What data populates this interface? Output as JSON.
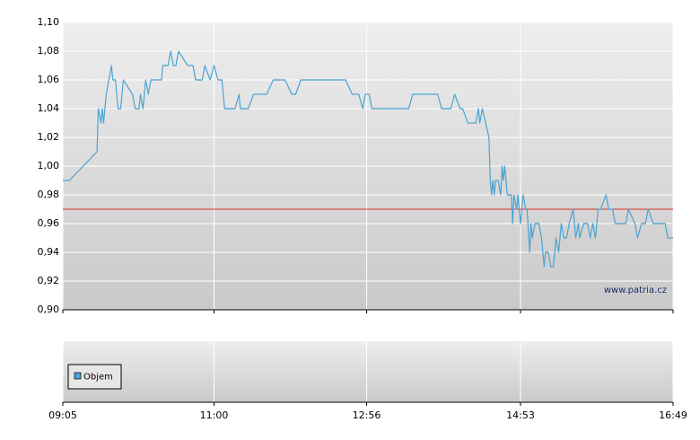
{
  "chart_data": {
    "type": "line",
    "x": [
      "09:05",
      "09:10",
      "09:31",
      "09:32",
      "09:34",
      "09:35",
      "09:36",
      "09:38",
      "09:40",
      "09:42",
      "09:43",
      "09:45",
      "09:47",
      "09:49",
      "09:51",
      "09:58",
      "10:00",
      "10:03",
      "10:04",
      "10:06",
      "10:08",
      "10:10",
      "10:12",
      "10:20",
      "10:21",
      "10:25",
      "10:27",
      "10:29",
      "10:31",
      "10:33",
      "10:40",
      "10:44",
      "10:46",
      "10:51",
      "10:53",
      "10:57",
      "11:00",
      "11:03",
      "11:06",
      "11:08",
      "11:16",
      "11:19",
      "11:20",
      "11:26",
      "11:30",
      "11:40",
      "11:45",
      "11:54",
      "11:59",
      "12:02",
      "12:06",
      "12:40",
      "12:45",
      "12:50",
      "12:53",
      "12:55",
      "12:58",
      "13:00",
      "13:28",
      "13:31",
      "13:50",
      "13:53",
      "14:00",
      "14:03",
      "14:07",
      "14:09",
      "14:13",
      "14:19",
      "14:21",
      "14:22",
      "14:24",
      "14:29",
      "14:30",
      "14:31",
      "14:32",
      "14:33",
      "14:34",
      "14:36",
      "14:38",
      "14:39",
      "14:40",
      "14:41",
      "14:43",
      "14:46",
      "14:47",
      "14:48",
      "14:50",
      "14:51",
      "14:53",
      "14:55",
      "14:57",
      "14:58",
      "15:00",
      "15:01",
      "15:02",
      "15:04",
      "15:07",
      "15:09",
      "15:11",
      "15:12",
      "15:14",
      "15:16",
      "15:18",
      "15:20",
      "15:22",
      "15:24",
      "15:26",
      "15:28",
      "15:30",
      "15:33",
      "15:35",
      "15:37",
      "15:38",
      "15:41",
      "15:44",
      "15:46",
      "15:48",
      "15:50",
      "15:52",
      "15:54",
      "15:58",
      "16:00",
      "16:03",
      "16:05",
      "16:13",
      "16:15",
      "16:20",
      "16:22",
      "16:25",
      "16:28",
      "16:30",
      "16:34",
      "16:43",
      "16:45",
      "16:49"
    ],
    "series": [
      {
        "color": "#4ba3d3",
        "values": [
          0.99,
          0.99,
          1.01,
          1.04,
          1.03,
          1.04,
          1.03,
          1.05,
          1.06,
          1.07,
          1.06,
          1.06,
          1.04,
          1.04,
          1.06,
          1.05,
          1.04,
          1.04,
          1.05,
          1.04,
          1.06,
          1.05,
          1.06,
          1.06,
          1.07,
          1.07,
          1.08,
          1.07,
          1.07,
          1.08,
          1.07,
          1.07,
          1.06,
          1.06,
          1.07,
          1.06,
          1.07,
          1.06,
          1.06,
          1.04,
          1.04,
          1.05,
          1.04,
          1.04,
          1.05,
          1.05,
          1.06,
          1.06,
          1.05,
          1.05,
          1.06,
          1.06,
          1.05,
          1.05,
          1.04,
          1.05,
          1.05,
          1.04,
          1.04,
          1.05,
          1.05,
          1.04,
          1.04,
          1.05,
          1.04,
          1.04,
          1.03,
          1.03,
          1.04,
          1.03,
          1.04,
          1.02,
          0.99,
          0.98,
          0.99,
          0.98,
          0.99,
          0.99,
          0.98,
          1.0,
          0.99,
          1.0,
          0.98,
          0.98,
          0.96,
          0.98,
          0.97,
          0.98,
          0.96,
          0.98,
          0.97,
          0.97,
          0.94,
          0.96,
          0.95,
          0.96,
          0.96,
          0.95,
          0.93,
          0.94,
          0.94,
          0.93,
          0.93,
          0.95,
          0.94,
          0.96,
          0.95,
          0.95,
          0.96,
          0.97,
          0.95,
          0.96,
          0.95,
          0.96,
          0.96,
          0.95,
          0.96,
          0.95,
          0.97,
          0.97,
          0.98,
          0.97,
          0.97,
          0.96,
          0.96,
          0.97,
          0.96,
          0.95,
          0.96,
          0.96,
          0.97,
          0.96,
          0.96,
          0.95,
          0.95
        ]
      }
    ],
    "xlim": [
      "09:05",
      "16:49"
    ],
    "xticks": [
      "09:05",
      "11:00",
      "12:56",
      "14:53",
      "16:49"
    ],
    "ylim": [
      0.9,
      1.1
    ],
    "yticks": [
      {
        "value": 0.9,
        "label": "0,90"
      },
      {
        "value": 0.92,
        "label": "0,92"
      },
      {
        "value": 0.94,
        "label": "0,94"
      },
      {
        "value": 0.96,
        "label": "0,96"
      },
      {
        "value": 0.98,
        "label": "0,98"
      },
      {
        "value": 1.0,
        "label": "1,00"
      },
      {
        "value": 1.02,
        "label": "1,02"
      },
      {
        "value": 1.04,
        "label": "1,04"
      },
      {
        "value": 1.06,
        "label": "1,06"
      },
      {
        "value": 1.08,
        "label": "1,08"
      },
      {
        "value": 1.1,
        "label": "1,10"
      }
    ],
    "reference_line": {
      "value": 0.97,
      "color": "#d9302a"
    },
    "grid": true,
    "watermark": "www.patria.cz",
    "volume_legend": {
      "name": "Objem",
      "color": "#4ba3d3"
    }
  }
}
